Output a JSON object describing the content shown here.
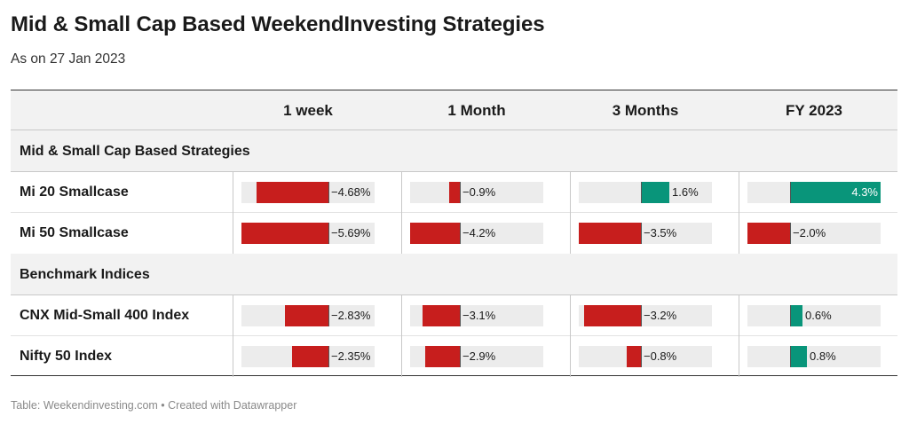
{
  "title": "Mid & Small Cap Based WeekendInvesting Strategies",
  "subtitle": "As on 27 Jan 2023",
  "footer": "Table: Weekendinvesting.com • Created with Datawrapper",
  "colors": {
    "negative": "#c71e1d",
    "positive": "#09957a",
    "track": "#ececec"
  },
  "chart_data": {
    "type": "table",
    "columns": [
      "1 week",
      "1 Month",
      "3 Months",
      "FY 2023"
    ],
    "groups": [
      {
        "label": "Mid & Small Cap Based Strategies",
        "rows": [
          {
            "name": "Mi 20 Smallcase",
            "values": [
              -4.68,
              -0.9,
              1.6,
              4.3
            ],
            "labels": [
              "−4.68%",
              "−0.9%",
              "1.6%",
              "4.3%"
            ]
          },
          {
            "name": "Mi 50 Smallcase",
            "values": [
              -5.69,
              -4.2,
              -3.5,
              -2.0
            ],
            "labels": [
              "−5.69%",
              "−4.2%",
              "−3.5%",
              "−2.0%"
            ]
          }
        ]
      },
      {
        "label": "Benchmark Indices",
        "rows": [
          {
            "name": "CNX Mid-Small 400 Index",
            "values": [
              -2.83,
              -3.1,
              -3.2,
              0.6
            ],
            "labels": [
              "−2.83%",
              "−3.1%",
              "−3.2%",
              "0.6%"
            ]
          },
          {
            "name": "Nifty 50 Index",
            "values": [
              -2.35,
              -2.9,
              -0.8,
              0.8
            ],
            "labels": [
              "−2.35%",
              "−2.9%",
              "−0.8%",
              "0.8%"
            ]
          }
        ]
      }
    ],
    "column_ranges": [
      {
        "min": -5.69,
        "max": 3.0
      },
      {
        "min": -4.2,
        "max": 7.0
      },
      {
        "min": -3.5,
        "max": 4.0
      },
      {
        "min": -2.0,
        "max": 4.3
      }
    ]
  }
}
